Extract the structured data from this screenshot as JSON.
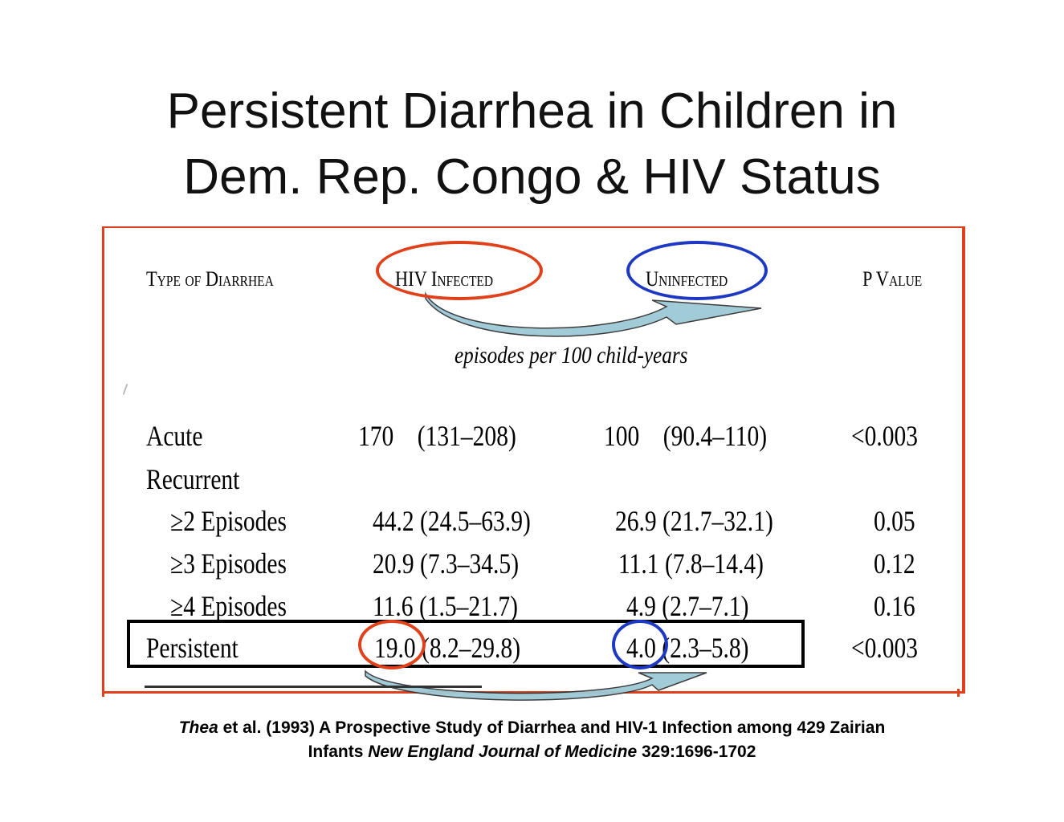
{
  "title": {
    "line1": "Persistent Diarrhea in Children in",
    "line2": "Dem. Rep. Congo & HIV Status"
  },
  "table": {
    "headers": {
      "type": "Type of Diarrhea",
      "hiv": "HIV Infected",
      "uninfected": "Uninfected",
      "p": "P Value"
    },
    "subheader": "episodes per 100 child-years",
    "rows": [
      {
        "label": "Acute",
        "hiv": "170    (131–208)",
        "uninf": "100    (90.4–110)",
        "p": "<0.003"
      },
      {
        "label": "Recurrent",
        "hiv": "",
        "uninf": "",
        "p": ""
      },
      {
        "label": "≥2 Episodes",
        "hiv": "44.2 (24.5–63.9)",
        "uninf": "26.9 (21.7–32.1)",
        "p": "0.05"
      },
      {
        "label": "≥3 Episodes",
        "hiv": "20.9 (7.3–34.5)",
        "uninf": "11.1 (7.8–14.4)",
        "p": "0.12"
      },
      {
        "label": "≥4 Episodes",
        "hiv": "11.6 (1.5–21.7)",
        "uninf": "4.9 (2.7–7.1)",
        "p": "0.16"
      },
      {
        "label": "Persistent",
        "hiv": "19.0 (8.2–29.8)",
        "uninf": "4.0 (2.3–5.8)",
        "p": "<0.003"
      }
    ]
  },
  "citation": {
    "author_italic": "Thea",
    "part1": " et al. (1993) A Prospective Study of Diarrhea and HIV-1 Infection among 429 Zairian",
    "part2_prefix": "Infants ",
    "journal_italic": "New England Journal of Medicine",
    "part2_suffix": " 329:1696-1702"
  },
  "colors": {
    "frame": "#e0411a",
    "hiv_oval": "#e0411a",
    "uninfected_oval": "#1d38c2",
    "arrow_fill": "#9ec9d6"
  }
}
